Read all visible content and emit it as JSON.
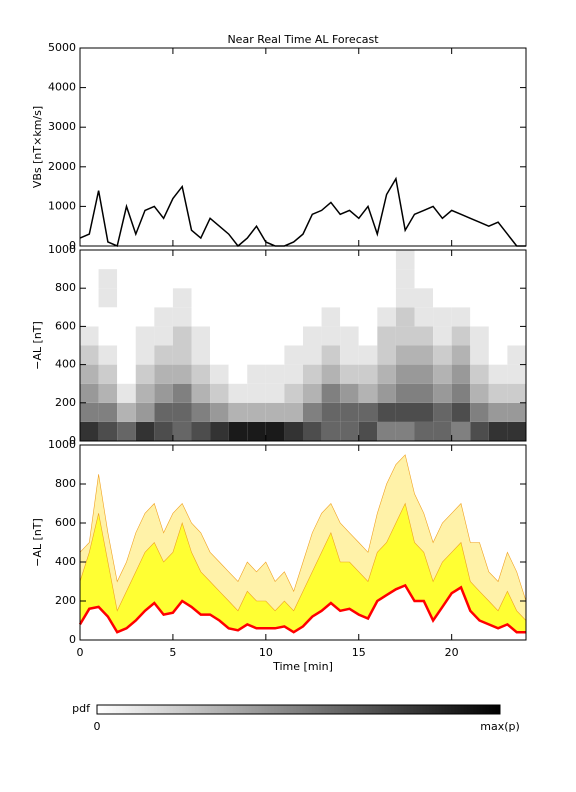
{
  "chart_data": [
    {
      "type": "line",
      "title": "Near Real Time AL Forecast",
      "ylabel": "VBs [nT×km/s]",
      "x": [
        0,
        0.5,
        1,
        1.5,
        2,
        2.5,
        3,
        3.5,
        4,
        4.5,
        5,
        5.5,
        6,
        6.5,
        7,
        7.5,
        8,
        8.5,
        9,
        9.5,
        10,
        10.5,
        11,
        11.5,
        12,
        12.5,
        13,
        13.5,
        14,
        14.5,
        15,
        15.5,
        16,
        16.5,
        17,
        17.5,
        18,
        18.5,
        19,
        19.5,
        20,
        20.5,
        21,
        21.5,
        22,
        22.5,
        23,
        23.5,
        24
      ],
      "series": [
        {
          "color": "#000000",
          "values": [
            200,
            300,
            1400,
            100,
            0,
            1000,
            300,
            900,
            1000,
            700,
            1200,
            1500,
            400,
            200,
            700,
            500,
            300,
            0,
            200,
            500,
            100,
            0,
            0,
            100,
            300,
            800,
            900,
            1100,
            800,
            900,
            700,
            1000,
            300,
            1300,
            1700,
            400,
            800,
            900,
            1000,
            700,
            900,
            800,
            700,
            600,
            500,
            600,
            300,
            0,
            0
          ]
        }
      ],
      "xlim": [
        0,
        24
      ],
      "xticks": [
        0,
        5,
        10,
        15,
        20
      ],
      "ylim": [
        0,
        5000
      ],
      "yticks": [
        0,
        1000,
        2000,
        3000,
        4000,
        5000
      ]
    },
    {
      "type": "heatmap",
      "ylabel": "−AL [nT]",
      "x": [
        0.5,
        1.5,
        2.5,
        3.5,
        4.5,
        5.5,
        6.5,
        7.5,
        8.5,
        9.5,
        10.5,
        11.5,
        12.5,
        13.5,
        14.5,
        15.5,
        16.5,
        17.5,
        18.5,
        19.5,
        20.5,
        21.5,
        22.5,
        23.5
      ],
      "y": [
        50,
        150,
        250,
        350,
        450,
        550,
        650,
        750,
        850,
        950
      ],
      "values": [
        [
          0.8,
          0.7,
          0.6,
          0.8,
          0.7,
          0.6,
          0.7,
          0.8,
          0.9,
          0.9,
          0.9,
          0.8,
          0.7,
          0.6,
          0.6,
          0.7,
          0.5,
          0.5,
          0.6,
          0.6,
          0.5,
          0.7,
          0.8,
          0.8
        ],
        [
          0.5,
          0.5,
          0.3,
          0.4,
          0.6,
          0.6,
          0.5,
          0.4,
          0.3,
          0.3,
          0.3,
          0.3,
          0.5,
          0.6,
          0.6,
          0.6,
          0.7,
          0.7,
          0.7,
          0.6,
          0.7,
          0.5,
          0.4,
          0.4
        ],
        [
          0.4,
          0.3,
          0.1,
          0.3,
          0.4,
          0.5,
          0.3,
          0.2,
          0.1,
          0.1,
          0.1,
          0.2,
          0.3,
          0.5,
          0.4,
          0.3,
          0.4,
          0.5,
          0.5,
          0.4,
          0.5,
          0.3,
          0.2,
          0.2
        ],
        [
          0.3,
          0.2,
          0,
          0.2,
          0.3,
          0.3,
          0.2,
          0.1,
          0,
          0.1,
          0.1,
          0.1,
          0.2,
          0.3,
          0.2,
          0.2,
          0.3,
          0.4,
          0.4,
          0.3,
          0.4,
          0.2,
          0.1,
          0.1
        ],
        [
          0.2,
          0.1,
          0,
          0.1,
          0.2,
          0.2,
          0.1,
          0,
          0,
          0,
          0,
          0.1,
          0.1,
          0.2,
          0.1,
          0.1,
          0.2,
          0.3,
          0.3,
          0.2,
          0.3,
          0.1,
          0,
          0.1
        ],
        [
          0.1,
          0,
          0,
          0.1,
          0.1,
          0.2,
          0.1,
          0,
          0,
          0,
          0,
          0,
          0.1,
          0.1,
          0.1,
          0,
          0.2,
          0.2,
          0.2,
          0.1,
          0.2,
          0.1,
          0,
          0
        ],
        [
          0,
          0,
          0,
          0,
          0.1,
          0.1,
          0,
          0,
          0,
          0,
          0,
          0,
          0,
          0.1,
          0,
          0,
          0.1,
          0.2,
          0.1,
          0.1,
          0.1,
          0,
          0,
          0
        ],
        [
          0,
          0.1,
          0,
          0,
          0,
          0.1,
          0,
          0,
          0,
          0,
          0,
          0,
          0,
          0,
          0,
          0,
          0,
          0.1,
          0.1,
          0,
          0,
          0,
          0,
          0
        ],
        [
          0,
          0.1,
          0,
          0,
          0,
          0,
          0,
          0,
          0,
          0,
          0,
          0,
          0,
          0,
          0,
          0,
          0,
          0.1,
          0,
          0,
          0,
          0,
          0,
          0
        ],
        [
          0,
          0,
          0,
          0,
          0,
          0,
          0,
          0,
          0,
          0,
          0,
          0,
          0,
          0,
          0,
          0,
          0,
          0.1,
          0,
          0,
          0,
          0,
          0,
          0
        ]
      ],
      "cmap": [
        "#ffffff",
        "#000000"
      ],
      "colorbar": {
        "label": "pdf",
        "min_label": "0",
        "max_label": "max(p)"
      },
      "xlim": [
        0,
        24
      ],
      "xticks": [
        0,
        5,
        10,
        15,
        20
      ],
      "ylim": [
        0,
        1000
      ],
      "yticks": [
        0,
        200,
        400,
        600,
        800,
        1000
      ]
    },
    {
      "type": "band",
      "ylabel": "−AL [nT]",
      "xlabel": "Time [min]",
      "x": [
        0,
        0.5,
        1,
        1.5,
        2,
        2.5,
        3,
        3.5,
        4,
        4.5,
        5,
        5.5,
        6,
        6.5,
        7,
        7.5,
        8,
        8.5,
        9,
        9.5,
        10,
        10.5,
        11,
        11.5,
        12,
        12.5,
        13,
        13.5,
        14,
        14.5,
        15,
        15.5,
        16,
        16.5,
        17,
        17.5,
        18,
        18.5,
        19,
        19.5,
        20,
        20.5,
        21,
        21.5,
        22,
        22.5,
        23,
        23.5,
        24
      ],
      "series": [
        {
          "color": "#fff2a8",
          "values": [
            450,
            500,
            850,
            550,
            300,
            400,
            550,
            650,
            700,
            550,
            650,
            700,
            600,
            550,
            450,
            400,
            350,
            300,
            400,
            350,
            400,
            300,
            350,
            250,
            400,
            550,
            650,
            700,
            600,
            550,
            500,
            450,
            650,
            800,
            900,
            950,
            750,
            650,
            500,
            600,
            650,
            700,
            500,
            500,
            350,
            300,
            450,
            350,
            200
          ]
        },
        {
          "color": "#ffff33",
          "values": [
            300,
            450,
            650,
            400,
            150,
            250,
            350,
            450,
            500,
            400,
            450,
            600,
            450,
            350,
            300,
            250,
            200,
            150,
            250,
            200,
            200,
            150,
            200,
            150,
            250,
            350,
            450,
            550,
            400,
            400,
            350,
            300,
            450,
            500,
            600,
            700,
            500,
            450,
            300,
            400,
            450,
            500,
            300,
            250,
            200,
            150,
            250,
            150,
            100
          ]
        },
        {
          "color": "#ff0000",
          "values": [
            80,
            160,
            170,
            120,
            40,
            60,
            100,
            150,
            190,
            130,
            140,
            200,
            170,
            130,
            130,
            100,
            60,
            50,
            80,
            60,
            60,
            60,
            70,
            40,
            70,
            120,
            150,
            190,
            150,
            160,
            130,
            110,
            200,
            230,
            260,
            280,
            200,
            200,
            100,
            170,
            240,
            270,
            150,
            100,
            80,
            60,
            80,
            40,
            40
          ]
        }
      ],
      "xlim": [
        0,
        24
      ],
      "xticks": [
        0,
        5,
        10,
        15,
        20
      ],
      "ylim": [
        0,
        1000
      ],
      "yticks": [
        0,
        200,
        400,
        600,
        800,
        1000
      ]
    }
  ]
}
